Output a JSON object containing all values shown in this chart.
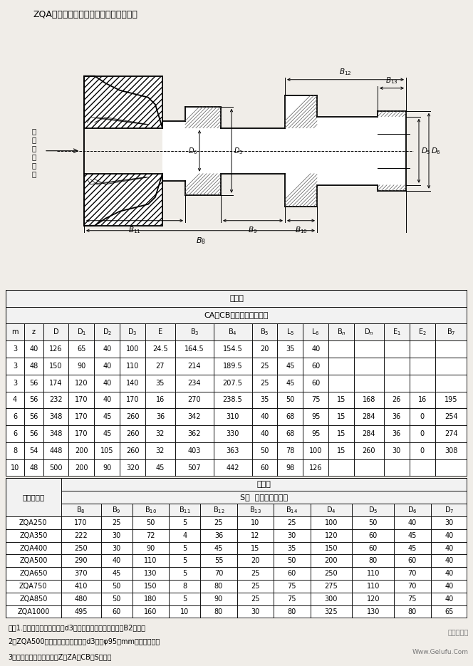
{
  "title": "ZQA型减速器输出轴型式及外形安装尺寸",
  "bg_color": "#f0ede8",
  "table1_header1": "输出轴",
  "table1_header2": "CA、CB型（齿轮联轴器）",
  "table1_cols": [
    "m",
    "z",
    "D",
    "D1",
    "D2",
    "D3",
    "E",
    "B3",
    "B4",
    "B5",
    "L5",
    "L6",
    "Bn",
    "Dn",
    "E1",
    "E2",
    "B7"
  ],
  "table1_col_labels": [
    "m",
    "z",
    "D",
    "D$_1$",
    "D$_2$",
    "D$_3$",
    "E",
    "B$_3$",
    "B$_4$",
    "B$_5$",
    "L$_5$",
    "L$_6$",
    "B$_n$",
    "D$_n$",
    "E$_1$",
    "E$_2$",
    "B$_7$"
  ],
  "table1_data": [
    [
      "3",
      "40",
      "126",
      "65",
      "40",
      "100",
      "24.5",
      "164.5",
      "154.5",
      "20",
      "35",
      "40",
      "",
      "",
      "",
      "",
      ""
    ],
    [
      "3",
      "48",
      "150",
      "90",
      "40",
      "110",
      "27",
      "214",
      "189.5",
      "25",
      "45",
      "60",
      "",
      "",
      "",
      "",
      ""
    ],
    [
      "3",
      "56",
      "174",
      "120",
      "40",
      "140",
      "35",
      "234",
      "207.5",
      "25",
      "45",
      "60",
      "",
      "",
      "",
      "",
      ""
    ],
    [
      "4",
      "56",
      "232",
      "170",
      "40",
      "170",
      "16",
      "270",
      "238.5",
      "35",
      "50",
      "75",
      "15",
      "168",
      "26",
      "16",
      "195"
    ],
    [
      "6",
      "56",
      "348",
      "170",
      "45",
      "260",
      "36",
      "342",
      "310",
      "40",
      "68",
      "95",
      "15",
      "284",
      "36",
      "0",
      "254"
    ],
    [
      "6",
      "56",
      "348",
      "170",
      "45",
      "260",
      "32",
      "362",
      "330",
      "40",
      "68",
      "95",
      "15",
      "284",
      "36",
      "0",
      "274"
    ],
    [
      "8",
      "54",
      "448",
      "200",
      "105",
      "260",
      "32",
      "403",
      "363",
      "50",
      "78",
      "100",
      "15",
      "260",
      "30",
      "0",
      "308"
    ],
    [
      "10",
      "48",
      "500",
      "200",
      "90",
      "320",
      "45",
      "507",
      "442",
      "60",
      "98",
      "126",
      "",
      "",
      "",
      "",
      ""
    ]
  ],
  "table2_header1": "输出轴",
  "table2_header2": "S型  （欧氏联轴器）",
  "table2_col_left": "减速器型号",
  "table2_col_labels": [
    "B$_8$",
    "B$_9$",
    "B$_{10}$",
    "B$_{11}$",
    "B$_{12}$",
    "B$_{13}$",
    "B$_{14}$",
    "D$_4$",
    "D$_5$",
    "D$_6$",
    "D$_7$"
  ],
  "table2_data": [
    [
      "ZQA250",
      "170",
      "25",
      "50",
      "5",
      "25",
      "10",
      "25",
      "100",
      "50",
      "40",
      "30"
    ],
    [
      "ZQA350",
      "222",
      "30",
      "72",
      "4",
      "36",
      "12",
      "30",
      "120",
      "60",
      "45",
      "40"
    ],
    [
      "ZQA400",
      "250",
      "30",
      "90",
      "5",
      "45",
      "15",
      "35",
      "150",
      "60",
      "45",
      "40"
    ],
    [
      "ZQA500",
      "290",
      "40",
      "110",
      "5",
      "55",
      "20",
      "50",
      "200",
      "80",
      "60",
      "40"
    ],
    [
      "ZQA650",
      "370",
      "45",
      "130",
      "5",
      "70",
      "25",
      "60",
      "250",
      "110",
      "70",
      "40"
    ],
    [
      "ZQA750",
      "410",
      "50",
      "150",
      "8",
      "80",
      "25",
      "75",
      "275",
      "110",
      "70",
      "40"
    ],
    [
      "ZQA850",
      "480",
      "50",
      "180",
      "5",
      "90",
      "25",
      "75",
      "300",
      "120",
      "75",
      "40"
    ],
    [
      "ZQA1000",
      "495",
      "60",
      "160",
      "10",
      "80",
      "30",
      "80",
      "325",
      "130",
      "80",
      "65"
    ]
  ],
  "notes": [
    "注：1.减速器的单端输出轴伸d3加粗，其外形安装尺寸应以B2为准。",
    "2、ZQA500减速器的双端输出轴伸d3只有φ95（mm）加粗一种。",
    "3、减速器输出轴伸式代号Z、ZA、CB、S表示。"
  ],
  "watermark1": "格鲁夫机械",
  "watermark2": "Www.Gelufu.Com"
}
